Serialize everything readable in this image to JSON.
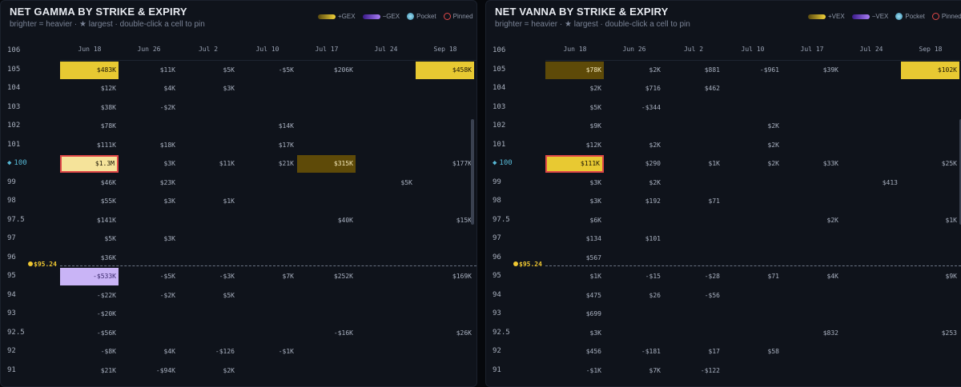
{
  "columns": [
    "Jun 18",
    "Jun 26",
    "Jul 2",
    "Jul 10",
    "Jul 17",
    "Jul 24",
    "Sep 18"
  ],
  "strikes": [
    "106",
    "105",
    "104",
    "103",
    "102",
    "101",
    "100",
    "99",
    "98",
    "97.5",
    "97",
    "96",
    "95",
    "94",
    "93",
    "92.5",
    "92",
    "91"
  ],
  "spot_strike_index": 6,
  "spot_marker": "◆",
  "price_marker": {
    "label": "$95.24",
    "between_rows": [
      11,
      12
    ]
  },
  "colors": {
    "pos_light": "#f5e39a",
    "pos": "#e8c932",
    "pos_dark": "#5e4a08",
    "neg": "#c9b4f6",
    "pin": "#e04848",
    "spot": "#56b7d4"
  },
  "panels": [
    {
      "id": "gamma",
      "title": "NET GAMMA BY STRIKE & EXPIRY",
      "subtitle": "brighter = heavier · ★ largest · double-click a cell to pin",
      "legend": [
        {
          "label": "+GEX",
          "kind": "bar",
          "color": "pos"
        },
        {
          "label": "−GEX",
          "kind": "bar",
          "color": "neg"
        },
        {
          "label": "Pocket",
          "kind": "dot"
        },
        {
          "label": "Pinned",
          "kind": "ring"
        }
      ],
      "rows": [
        [
          "",
          "",
          "",
          "",
          "",
          "",
          ""
        ],
        [
          "$483K",
          "$11K",
          "$5K",
          "-$5K",
          "$206K",
          "",
          "$458K"
        ],
        [
          "$12K",
          "$4K",
          "$3K",
          "",
          "",
          "",
          ""
        ],
        [
          "$38K",
          "-$2K",
          "",
          "",
          "",
          "",
          ""
        ],
        [
          "$78K",
          "",
          "",
          "$14K",
          "",
          "",
          ""
        ],
        [
          "$111K",
          "$18K",
          "",
          "$17K",
          "",
          "",
          ""
        ],
        [
          "$1.3M",
          "$3K",
          "$11K",
          "$21K",
          "$315K",
          "",
          "$177K"
        ],
        [
          "$46K",
          "$23K",
          "",
          "",
          "",
          "$5K",
          ""
        ],
        [
          "$55K",
          "$3K",
          "$1K",
          "",
          "",
          "",
          ""
        ],
        [
          "$141K",
          "",
          "",
          "",
          "$40K",
          "",
          "$15K"
        ],
        [
          "$5K",
          "$3K",
          "",
          "",
          "",
          "",
          ""
        ],
        [
          "$36K",
          "",
          "",
          "",
          "",
          "",
          ""
        ],
        [
          "-$533K",
          "-$5K",
          "-$3K",
          "$7K",
          "$252K",
          "",
          "$169K"
        ],
        [
          "-$22K",
          "-$2K",
          "$5K",
          "",
          "",
          "",
          ""
        ],
        [
          "-$20K",
          "",
          "",
          "",
          "",
          "",
          ""
        ],
        [
          "-$56K",
          "",
          "",
          "",
          "-$16K",
          "",
          "$26K"
        ],
        [
          "-$8K",
          "$4K",
          "-$126",
          "-$1K",
          "",
          "",
          ""
        ],
        [
          "$21K",
          "-$94K",
          "$2K",
          "",
          "",
          "",
          ""
        ]
      ],
      "highlights": [
        {
          "r": 1,
          "c": 0,
          "color": "pos"
        },
        {
          "r": 1,
          "c": 6,
          "color": "pos"
        },
        {
          "r": 6,
          "c": 0,
          "color": "pos_light",
          "pinned": true
        },
        {
          "r": 6,
          "c": 4,
          "color": "pos_dark"
        },
        {
          "r": 12,
          "c": 0,
          "color": "neg"
        }
      ],
      "price_label": "$95.24"
    },
    {
      "id": "vanna",
      "title": "NET VANNA BY STRIKE & EXPIRY",
      "subtitle": "brighter = heavier · ★ largest · double-click a cell to pin",
      "legend": [
        {
          "label": "+VEX",
          "kind": "bar",
          "color": "pos"
        },
        {
          "label": "−VEX",
          "kind": "bar",
          "color": "neg"
        },
        {
          "label": "Pocket",
          "kind": "dot"
        },
        {
          "label": "Pinned",
          "kind": "ring"
        }
      ],
      "rows": [
        [
          "",
          "",
          "",
          "",
          "",
          "",
          ""
        ],
        [
          "$78K",
          "$2K",
          "$881",
          "-$961",
          "$39K",
          "",
          "$102K"
        ],
        [
          "$2K",
          "$716",
          "$462",
          "",
          "",
          "",
          ""
        ],
        [
          "$5K",
          "-$344",
          "",
          "",
          "",
          "",
          ""
        ],
        [
          "$9K",
          "",
          "",
          "$2K",
          "",
          "",
          ""
        ],
        [
          "$12K",
          "$2K",
          "",
          "$2K",
          "",
          "",
          ""
        ],
        [
          "$111K",
          "$290",
          "$1K",
          "$2K",
          "$33K",
          "",
          "$25K"
        ],
        [
          "$3K",
          "$2K",
          "",
          "",
          "",
          "$413",
          ""
        ],
        [
          "$3K",
          "$192",
          "$71",
          "",
          "",
          "",
          ""
        ],
        [
          "$6K",
          "",
          "",
          "",
          "$2K",
          "",
          "$1K"
        ],
        [
          "$134",
          "$101",
          "",
          "",
          "",
          "",
          ""
        ],
        [
          "$567",
          "",
          "",
          "",
          "",
          "",
          ""
        ],
        [
          "$1K",
          "-$15",
          "-$28",
          "$71",
          "$4K",
          "",
          "$9K"
        ],
        [
          "$475",
          "$26",
          "-$56",
          "",
          "",
          "",
          ""
        ],
        [
          "$699",
          "",
          "",
          "",
          "",
          "",
          ""
        ],
        [
          "$3K",
          "",
          "",
          "",
          "$832",
          "",
          "$253"
        ],
        [
          "$456",
          "-$181",
          "$17",
          "$58",
          "",
          "",
          ""
        ],
        [
          "-$1K",
          "$7K",
          "-$122",
          "",
          "",
          "",
          ""
        ]
      ],
      "highlights": [
        {
          "r": 1,
          "c": 0,
          "color": "pos_dark"
        },
        {
          "r": 1,
          "c": 6,
          "color": "pos"
        },
        {
          "r": 6,
          "c": 0,
          "color": "pos",
          "pinned": true
        }
      ],
      "price_label": "$95.24"
    }
  ]
}
